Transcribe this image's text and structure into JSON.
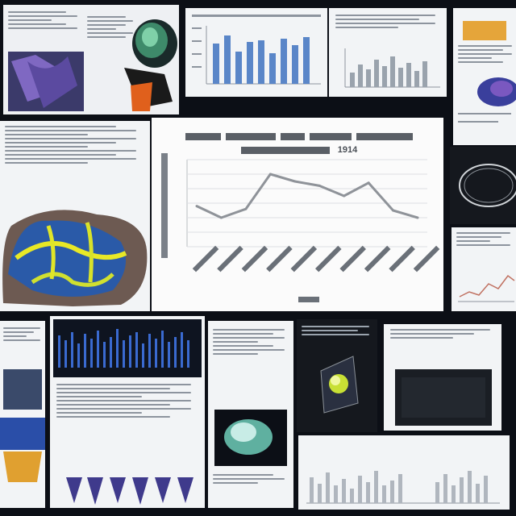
{
  "main_chart": {
    "title_line2": "1914"
  },
  "chart_data": {
    "type": "line",
    "title": "1914",
    "xlabel": "",
    "ylabel": "",
    "categories": [
      "",
      "",
      "",
      "",
      "",
      "",
      "",
      "",
      "",
      ""
    ],
    "values": [
      48,
      40,
      46,
      70,
      65,
      62,
      55,
      64,
      45,
      40
    ],
    "ylim": [
      20,
      80
    ],
    "grid": true
  },
  "colors": {
    "line": "#8f9399",
    "bar_blue": "#5a86c8",
    "page_bg": "#0c0f16"
  },
  "icons": [
    "3d-render-image",
    "brain-scan-image",
    "eye-scan-image",
    "blob-render-image",
    "prism-render-image"
  ]
}
